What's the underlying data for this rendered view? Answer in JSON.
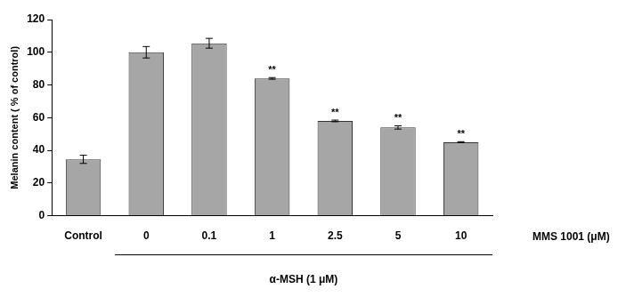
{
  "chart_data": {
    "type": "bar",
    "y_label": "Melanin content ( % of control)",
    "x_label": "MMS 1001 (μM)",
    "categories": [
      "Control",
      "0",
      "0.1",
      "1",
      "2.5",
      "5",
      "10"
    ],
    "values": [
      34.5,
      100,
      105.5,
      84,
      58,
      54,
      45
    ],
    "errors": [
      2.5,
      3.5,
      3,
      0.5,
      0.5,
      1,
      0.3
    ],
    "significance": [
      null,
      null,
      null,
      "**",
      "**",
      "**",
      "**"
    ],
    "group": {
      "label": "α-MSH (1 μM)",
      "from": "0",
      "to": "10"
    },
    "color": "#a6a6a6",
    "ylim": [
      0,
      120
    ],
    "yticks": [
      0,
      20,
      40,
      60,
      80,
      100,
      120
    ],
    "grid": false,
    "legend": null
  }
}
